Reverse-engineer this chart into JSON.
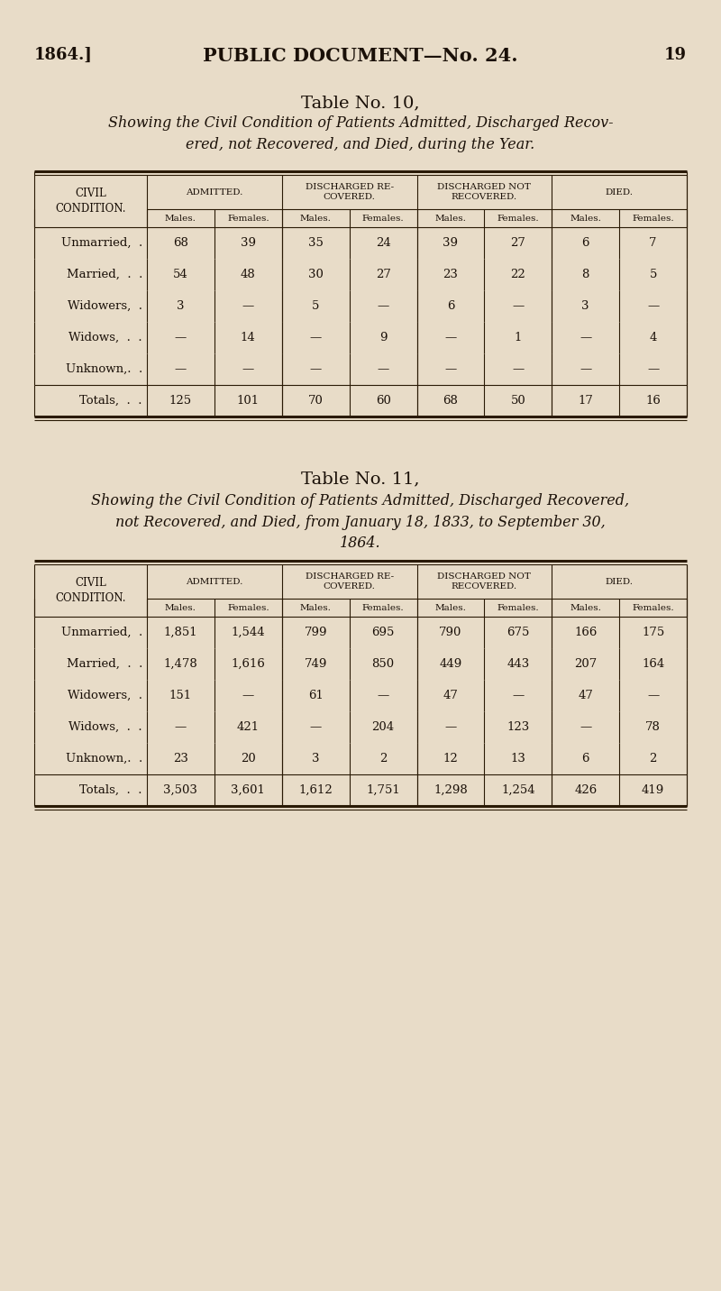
{
  "bg_color": "#e8dcc8",
  "header_text": "1864.]",
  "center_header": "PUBLIC DOCUMENT—No. 24.",
  "page_num": "19",
  "table10_title": "Table No. 10,",
  "table10_subtitle": "Showing the Civil Condition of Patients Admitted, Discharged Recov-\nered, not Recovered, and Died, during the Year.",
  "table11_title": "Table No. 11,",
  "table11_subtitle": "Showing the Civil Condition of Patients Admitted, Discharged Recovered,\nnot Recovered, and Died, from January 18, 1833, to September 30,\n1864.",
  "col_headers_top": [
    "ADMITTED.",
    "DISCHARGED RE-\nCOVERED.",
    "DISCHARGED NOT\nRECOVERED.",
    "DIED."
  ],
  "col_headers_sub": [
    "Males.",
    "Females.",
    "Males.",
    "Females.",
    "Males.",
    "Females.",
    "Males.",
    "Females."
  ],
  "row_label_header": "CIVIL\nCONDITION.",
  "table10_rows": [
    [
      "Unmarried,  .",
      "68",
      "39",
      "35",
      "24",
      "39",
      "27",
      "6",
      "7"
    ],
    [
      "Married,  .  .",
      "54",
      "48",
      "30",
      "27",
      "23",
      "22",
      "8",
      "5"
    ],
    [
      "Widowers,  .",
      "3",
      "—",
      "5",
      "—",
      "6",
      "—",
      "3",
      "—"
    ],
    [
      "Widows,  .  .",
      "—",
      "14",
      "—",
      "9",
      "—",
      "1",
      "—",
      "4"
    ],
    [
      "Unknown,.  .",
      "—",
      "—",
      "—",
      "—",
      "—",
      "—",
      "—",
      "—"
    ],
    [
      "Totals,  .  .",
      "125",
      "101",
      "70",
      "60",
      "68",
      "50",
      "17",
      "16"
    ]
  ],
  "table11_rows": [
    [
      "Unmarried,  .",
      "1,851",
      "1,544",
      "799",
      "695",
      "790",
      "675",
      "166",
      "175"
    ],
    [
      "Married,  .  .",
      "1,478",
      "1,616",
      "749",
      "850",
      "449",
      "443",
      "207",
      "164"
    ],
    [
      "Widowers,  .",
      "151",
      "—",
      "61",
      "—",
      "47",
      "—",
      "47",
      "—"
    ],
    [
      "Widows,  .  .",
      "—",
      "421",
      "—",
      "204",
      "—",
      "123",
      "—",
      "78"
    ],
    [
      "Unknown,.  .",
      "23",
      "20",
      "3",
      "2",
      "12",
      "13",
      "6",
      "2"
    ],
    [
      "Totals,  .  .",
      "3,503",
      "3,601",
      "1,612",
      "1,751",
      "1,298",
      "1,254",
      "426",
      "419"
    ]
  ]
}
